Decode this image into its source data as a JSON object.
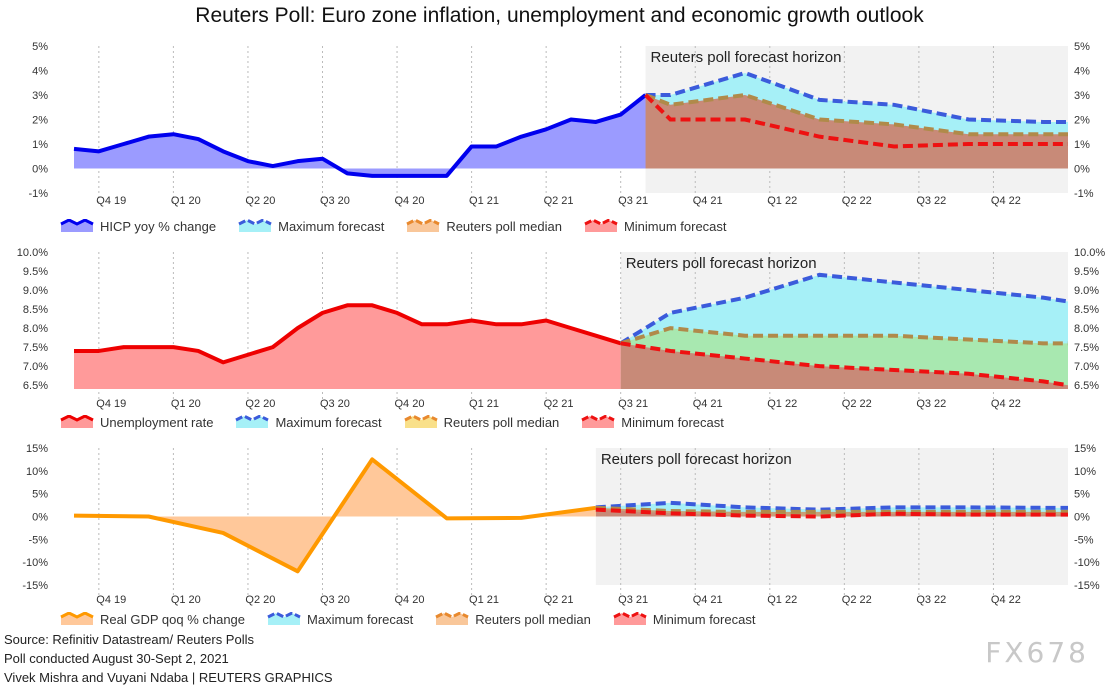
{
  "title": "Reuters Poll: Euro zone inflation, unemployment and economic growth outlook",
  "footer": {
    "source": "Source: Refinitiv Datastream/ Reuters Polls",
    "poll_date": "Poll conducted August 30-Sept 2, 2021",
    "credit": "Vivek Mishra and Vuyani Ndaba | REUTERS GRAPHICS"
  },
  "watermark": "FX678",
  "colors": {
    "actual_blue": "#0000ee",
    "actual_blue_fill": "#9b9bff",
    "actual_red": "#ee0000",
    "actual_red_fill": "#ff9a9a",
    "actual_orange": "#ff9900",
    "actual_orange_fill": "#ffc89a",
    "max_line": "#3b5bdb",
    "max_fill": "#a6f0f7",
    "median_line": "#b08a4a",
    "median_fill_unemp": "#a8e8b0",
    "min_line": "#ee1111",
    "min_fill": "#c88a78",
    "forecast_bg": "#f2f2f2"
  },
  "chart_data": [
    {
      "id": "inflation",
      "type": "area",
      "forecast_label": "Reuters poll forecast horizon",
      "ylim": [
        -1,
        5
      ],
      "yticks": [
        -1,
        0,
        1,
        2,
        3,
        4,
        5
      ],
      "yticklabels": [
        "-1%",
        "0%",
        "1%",
        "2%",
        "3%",
        "4%",
        "5%"
      ],
      "quarter_labels": [
        "Q4 19",
        "Q1 20",
        "Q2 20",
        "Q3 20",
        "Q4 20",
        "Q1 21",
        "Q2 21",
        "Q3 21",
        "Q4 21",
        "Q1 22",
        "Q2 22",
        "Q3 22",
        "Q4 22"
      ],
      "actual": {
        "name": "HICP yoy % change",
        "values": [
          0.8,
          0.7,
          1.0,
          1.3,
          1.4,
          1.2,
          0.7,
          0.3,
          0.1,
          0.3,
          0.4,
          -0.2,
          -0.3,
          -0.3,
          -0.3,
          -0.3,
          0.9,
          0.9,
          1.3,
          1.6,
          2.0,
          1.9,
          2.2,
          3.0
        ]
      },
      "forecast_x": [
        23,
        24,
        27,
        30,
        33,
        36,
        39,
        40
      ],
      "max": {
        "name": "Maximum forecast",
        "values": [
          3.0,
          3.0,
          3.9,
          2.8,
          2.6,
          2.0,
          1.9,
          1.9
        ]
      },
      "median": {
        "name": "Reuters poll median",
        "values": [
          3.0,
          2.6,
          3.0,
          2.0,
          1.8,
          1.4,
          1.4,
          1.4
        ]
      },
      "min": {
        "name": "Minimum forecast",
        "values": [
          3.0,
          2.0,
          2.0,
          1.3,
          0.9,
          1.0,
          1.0,
          1.0
        ]
      }
    },
    {
      "id": "unemployment",
      "type": "area",
      "forecast_label": "Reuters poll forecast horizon",
      "ylim": [
        6.4,
        10.0
      ],
      "yticks": [
        6.5,
        7.0,
        7.5,
        8.0,
        8.5,
        9.0,
        9.5,
        10.0
      ],
      "yticklabels": [
        "6.5%",
        "7.0%",
        "7.5%",
        "8.0%",
        "8.5%",
        "9.0%",
        "9.5%",
        "10.0%"
      ],
      "quarter_labels": [
        "Q4 19",
        "Q1 20",
        "Q2 20",
        "Q3 20",
        "Q4 20",
        "Q1 21",
        "Q2 21",
        "Q3 21",
        "Q4 21",
        "Q1 22",
        "Q2 22",
        "Q3 22",
        "Q4 22"
      ],
      "actual": {
        "name": "Unemployment rate",
        "values": [
          7.4,
          7.4,
          7.5,
          7.5,
          7.5,
          7.4,
          7.1,
          7.3,
          7.5,
          8.0,
          8.4,
          8.6,
          8.6,
          8.4,
          8.1,
          8.1,
          8.2,
          8.1,
          8.1,
          8.2,
          8.0,
          7.8,
          7.6
        ]
      },
      "forecast_x": [
        22,
        24,
        27,
        30,
        33,
        36,
        39,
        40
      ],
      "max": {
        "name": "Maximum forecast",
        "values": [
          7.6,
          8.4,
          8.8,
          9.4,
          9.2,
          9.0,
          8.8,
          8.7
        ]
      },
      "median": {
        "name": "Reuters poll median",
        "values": [
          7.6,
          8.0,
          7.8,
          7.8,
          7.8,
          7.7,
          7.6,
          7.6
        ]
      },
      "min": {
        "name": "Minimum forecast",
        "values": [
          7.6,
          7.4,
          7.2,
          7.0,
          6.9,
          6.8,
          6.6,
          6.5
        ]
      }
    },
    {
      "id": "gdp",
      "type": "area",
      "forecast_label": "Reuters poll forecast horizon",
      "ylim": [
        -15,
        15
      ],
      "yticks": [
        -15,
        -10,
        -5,
        0,
        5,
        10,
        15
      ],
      "yticklabels": [
        "-15%",
        "-10%",
        "-5%",
        "0%",
        "5%",
        "10%",
        "15%"
      ],
      "quarter_labels": [
        "Q4 19",
        "Q1 20",
        "Q2 20",
        "Q3 20",
        "Q4 20",
        "Q1 21",
        "Q2 21",
        "Q3 21",
        "Q4 21",
        "Q1 22",
        "Q2 22",
        "Q3 22",
        "Q4 22"
      ],
      "actual": {
        "name": "Real GDP qoq % change",
        "x": [
          0,
          3,
          6,
          9,
          12,
          15,
          18,
          21
        ],
        "values": [
          0.2,
          0.0,
          -3.6,
          -12.0,
          12.5,
          -0.4,
          -0.3,
          1.9
        ]
      },
      "forecast_x": [
        21,
        24,
        27,
        30,
        33,
        36,
        39,
        40
      ],
      "max": {
        "name": "Maximum forecast",
        "values": [
          2.0,
          3.0,
          2.0,
          1.5,
          2.0,
          2.0,
          1.9,
          1.9
        ]
      },
      "median": {
        "name": "Reuters poll median",
        "values": [
          1.9,
          1.2,
          1.0,
          1.0,
          1.0,
          1.0,
          1.0,
          1.0
        ]
      },
      "min": {
        "name": "Minimum forecast",
        "values": [
          1.5,
          0.7,
          0.2,
          0.0,
          0.6,
          0.4,
          0.4,
          0.4
        ]
      }
    }
  ]
}
